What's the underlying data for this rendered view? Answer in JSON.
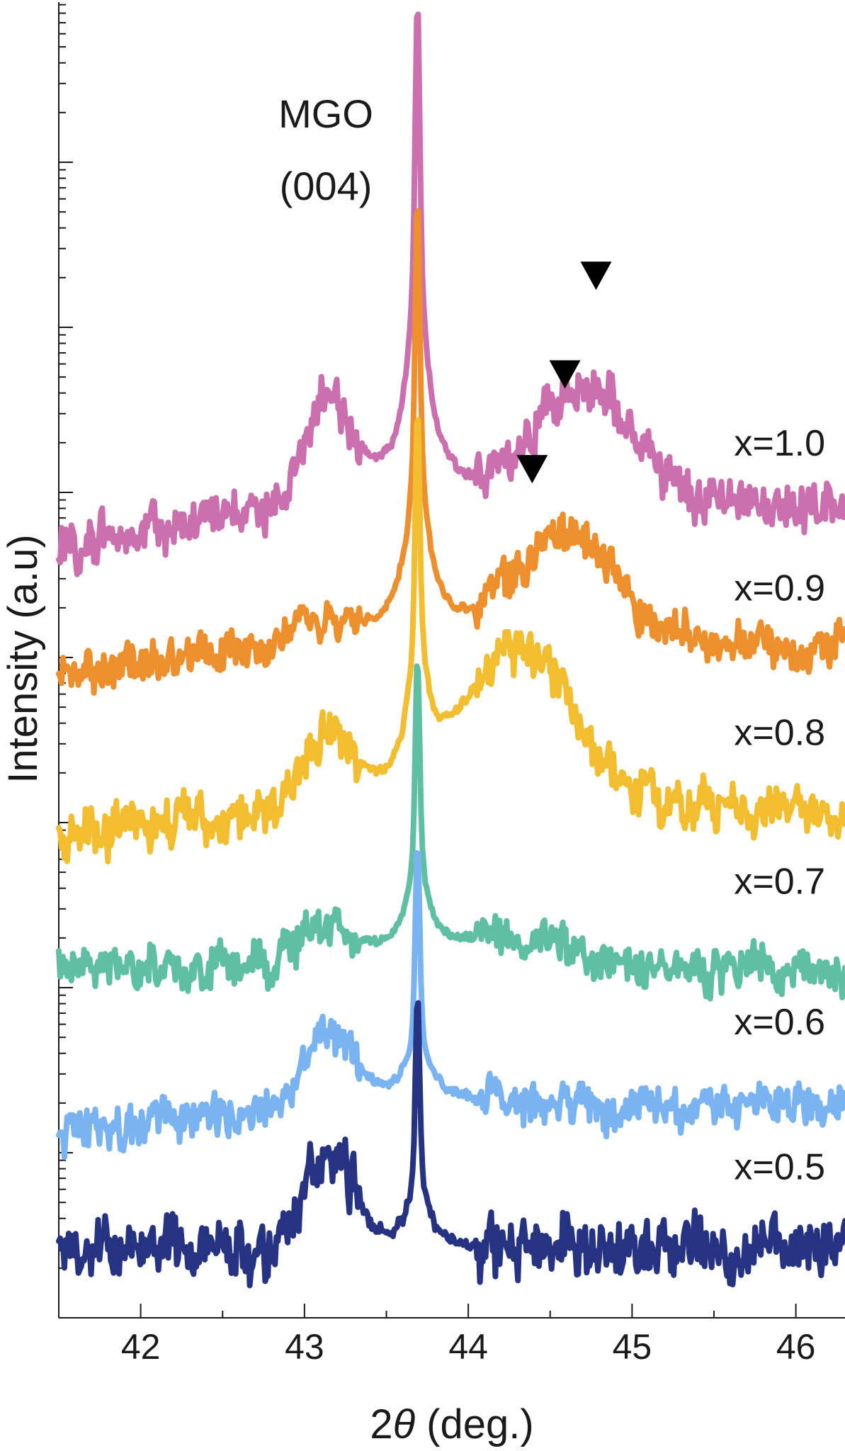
{
  "chart_data": {
    "type": "line",
    "title": "",
    "xlabel": "2θ (deg.)",
    "xlabel_parts": {
      "prefix": "2",
      "symbol": "θ",
      "suffix": " (deg.)"
    },
    "ylabel": "Intensity (a.u)",
    "xlim": [
      41.5,
      46.3
    ],
    "x_ticks": [
      42,
      43,
      44,
      45,
      46
    ],
    "x_tick_labels": [
      "42",
      "43",
      "44",
      "45",
      "46"
    ],
    "y_scale": "log",
    "y_tick_labels_shown": false,
    "grid": false,
    "legend": "none (labels printed at right of each trace)",
    "annotations": [
      {
        "text_line1": "MGO",
        "text_line2": "(004)",
        "at_x": 43.69
      }
    ],
    "peak_markers": [
      {
        "series": "x=1.0",
        "x": 44.78
      },
      {
        "series": "x=0.9",
        "x": 44.59
      },
      {
        "series": "x=0.8",
        "x": 44.39
      }
    ],
    "series": [
      {
        "name": "x=1.0",
        "color": "#cc6fae",
        "baseline": 0.615,
        "bg_left": -0.03,
        "shoulder_h": 0.07,
        "shoulder_w": 0.22,
        "peak_h": 0.245,
        "sharp_h": 0.145,
        "film_x": 44.72,
        "film_h": 0.09,
        "film_w": 0.42,
        "noise": 0.018,
        "label_y": 0.335
      },
      {
        "name": "x=0.9",
        "color": "#ed8f2c",
        "baseline": 0.51,
        "bg_left": -0.02,
        "shoulder_h": 0.01,
        "shoulder_w": 0.22,
        "peak_h": 0.2,
        "sharp_h": 0.145,
        "film_x": 44.59,
        "film_h": 0.085,
        "film_w": 0.42,
        "noise": 0.016,
        "label_y": 0.445
      },
      {
        "name": "x=0.8",
        "color": "#f2bd2e",
        "baseline": 0.385,
        "bg_left": -0.02,
        "shoulder_h": 0.05,
        "shoulder_w": 0.22,
        "peak_h": 0.165,
        "sharp_h": 0.125,
        "film_x": 44.32,
        "film_h": 0.12,
        "film_w": 0.45,
        "noise": 0.018,
        "label_y": 0.555
      },
      {
        "name": "x=0.7",
        "color": "#5fbfa3",
        "baseline": 0.265,
        "bg_left": 0.0,
        "shoulder_h": 0.03,
        "shoulder_w": 0.25,
        "peak_h": 0.115,
        "sharp_h": 0.12,
        "film_x": 44.3,
        "film_h": 0.02,
        "film_w": 0.45,
        "noise": 0.016,
        "label_y": 0.668
      },
      {
        "name": "x=0.6",
        "color": "#79b3f2",
        "baseline": 0.16,
        "bg_left": -0.02,
        "shoulder_h": 0.05,
        "shoulder_w": 0.22,
        "peak_h": 0.085,
        "sharp_h": 0.115,
        "film_x": 44.3,
        "film_h": 0.0,
        "film_w": 0.45,
        "noise": 0.016,
        "label_y": 0.775
      },
      {
        "name": "x=0.5",
        "color": "#253382",
        "baseline": 0.05,
        "bg_left": 0.0,
        "shoulder_h": 0.075,
        "shoulder_w": 0.2,
        "peak_h": 0.075,
        "sharp_h": 0.12,
        "film_x": 44.3,
        "film_h": 0.0,
        "film_w": 0.45,
        "noise": 0.022,
        "label_y": 0.885
      }
    ]
  }
}
